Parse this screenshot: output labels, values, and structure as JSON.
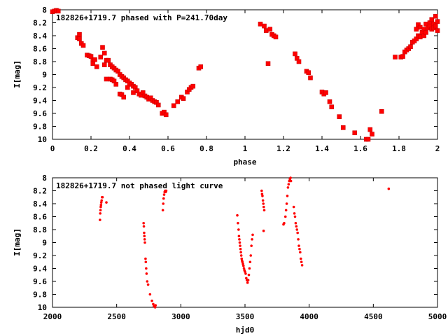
{
  "chart_data": [
    {
      "type": "scatter",
      "title": "182826+1719.7 phased with P=241.70day",
      "xlabel": "phase",
      "ylabel": "I[mag]",
      "xlim": [
        0,
        2
      ],
      "ylim": [
        10,
        8
      ],
      "y_inverted": true,
      "grid": false,
      "color": "#ff0000",
      "x_ticks": [
        "0",
        "0.2",
        "0.4",
        "0.6",
        "0.8",
        "1",
        "1.2",
        "1.4",
        "1.6",
        "1.8",
        "2"
      ],
      "y_ticks": [
        "8",
        "8.2",
        "8.4",
        "8.6",
        "8.8",
        "9",
        "9.2",
        "9.4",
        "9.6",
        "9.8",
        "10"
      ],
      "points": [
        [
          0.0,
          8.03
        ],
        [
          0.01,
          8.02
        ],
        [
          0.02,
          8.01
        ],
        [
          0.03,
          8.02
        ],
        [
          0.13,
          8.43
        ],
        [
          0.14,
          8.38
        ],
        [
          0.14,
          8.45
        ],
        [
          0.15,
          8.52
        ],
        [
          0.16,
          8.55
        ],
        [
          0.18,
          8.7
        ],
        [
          0.19,
          8.71
        ],
        [
          0.2,
          8.72
        ],
        [
          0.21,
          8.78
        ],
        [
          0.21,
          8.83
        ],
        [
          0.22,
          8.77
        ],
        [
          0.23,
          8.88
        ],
        [
          0.25,
          8.73
        ],
        [
          0.26,
          8.58
        ],
        [
          0.27,
          8.67
        ],
        [
          0.27,
          8.85
        ],
        [
          0.28,
          8.78
        ],
        [
          0.28,
          9.07
        ],
        [
          0.29,
          8.78
        ],
        [
          0.3,
          8.85
        ],
        [
          0.3,
          9.07
        ],
        [
          0.31,
          8.88
        ],
        [
          0.31,
          9.08
        ],
        [
          0.32,
          8.9
        ],
        [
          0.32,
          9.1
        ],
        [
          0.33,
          8.93
        ],
        [
          0.33,
          9.15
        ],
        [
          0.34,
          8.95
        ],
        [
          0.35,
          9.0
        ],
        [
          0.35,
          9.3
        ],
        [
          0.36,
          9.03
        ],
        [
          0.36,
          9.31
        ],
        [
          0.37,
          9.05
        ],
        [
          0.37,
          9.35
        ],
        [
          0.38,
          9.08
        ],
        [
          0.39,
          9.1
        ],
        [
          0.39,
          9.2
        ],
        [
          0.4,
          9.13
        ],
        [
          0.41,
          9.15
        ],
        [
          0.42,
          9.18
        ],
        [
          0.42,
          9.28
        ],
        [
          0.43,
          9.2
        ],
        [
          0.44,
          9.25
        ],
        [
          0.45,
          9.3
        ],
        [
          0.46,
          9.32
        ],
        [
          0.47,
          9.28
        ],
        [
          0.48,
          9.33
        ],
        [
          0.49,
          9.35
        ],
        [
          0.5,
          9.38
        ],
        [
          0.51,
          9.36
        ],
        [
          0.52,
          9.4
        ],
        [
          0.53,
          9.42
        ],
        [
          0.54,
          9.43
        ],
        [
          0.55,
          9.47
        ],
        [
          0.57,
          9.6
        ],
        [
          0.58,
          9.58
        ],
        [
          0.59,
          9.62
        ],
        [
          0.63,
          9.48
        ],
        [
          0.65,
          9.42
        ],
        [
          0.67,
          9.35
        ],
        [
          0.68,
          9.37
        ],
        [
          0.7,
          9.27
        ],
        [
          0.71,
          9.23
        ],
        [
          0.72,
          9.2
        ],
        [
          0.73,
          9.18
        ],
        [
          0.76,
          8.9
        ],
        [
          0.77,
          8.88
        ],
        [
          1.08,
          8.22
        ],
        [
          1.1,
          8.25
        ],
        [
          1.11,
          8.32
        ],
        [
          1.12,
          8.83
        ],
        [
          1.13,
          8.3
        ],
        [
          1.14,
          8.38
        ],
        [
          1.15,
          8.4
        ],
        [
          1.16,
          8.42
        ],
        [
          1.26,
          8.68
        ],
        [
          1.27,
          8.75
        ],
        [
          1.28,
          8.8
        ],
        [
          1.32,
          8.95
        ],
        [
          1.33,
          8.97
        ],
        [
          1.34,
          9.05
        ],
        [
          1.4,
          9.27
        ],
        [
          1.41,
          9.3
        ],
        [
          1.42,
          9.28
        ],
        [
          1.44,
          9.42
        ],
        [
          1.45,
          9.5
        ],
        [
          1.49,
          9.65
        ],
        [
          1.51,
          9.82
        ],
        [
          1.57,
          9.9
        ],
        [
          1.63,
          10.0
        ],
        [
          1.64,
          10.0
        ],
        [
          1.65,
          9.85
        ],
        [
          1.66,
          9.92
        ],
        [
          1.71,
          9.57
        ],
        [
          1.78,
          8.73
        ],
        [
          1.81,
          8.73
        ],
        [
          1.82,
          8.72
        ],
        [
          1.83,
          8.65
        ],
        [
          1.84,
          8.62
        ],
        [
          1.85,
          8.6
        ],
        [
          1.86,
          8.57
        ],
        [
          1.87,
          8.5
        ],
        [
          1.88,
          8.48
        ],
        [
          1.89,
          8.45
        ],
        [
          1.89,
          8.3
        ],
        [
          1.9,
          8.4
        ],
        [
          1.9,
          8.23
        ],
        [
          1.91,
          8.42
        ],
        [
          1.91,
          8.27
        ],
        [
          1.92,
          8.35
        ],
        [
          1.93,
          8.3
        ],
        [
          1.93,
          8.4
        ],
        [
          1.94,
          8.22
        ],
        [
          1.94,
          8.35
        ],
        [
          1.95,
          8.28
        ],
        [
          1.96,
          8.2
        ],
        [
          1.96,
          8.25
        ],
        [
          1.97,
          8.15
        ],
        [
          1.97,
          8.3
        ],
        [
          1.98,
          8.22
        ],
        [
          1.98,
          8.28
        ],
        [
          1.99,
          8.25
        ],
        [
          1.99,
          8.1
        ],
        [
          2.0,
          8.18
        ],
        [
          2.0,
          8.32
        ]
      ]
    },
    {
      "type": "scatter",
      "title": "182826+1719.7 not phased light curve",
      "xlabel": "hjd0",
      "ylabel": "I[mag]",
      "xlim": [
        2000,
        5000
      ],
      "ylim": [
        10,
        8
      ],
      "y_inverted": true,
      "grid": false,
      "color": "#ff0000",
      "x_ticks": [
        "2000",
        "2500",
        "3000",
        "3500",
        "4000",
        "4500",
        "5000"
      ],
      "y_ticks": [
        "8",
        "8.2",
        "8.4",
        "8.6",
        "8.8",
        "9",
        "9.2",
        "9.4",
        "9.6",
        "9.8",
        "10"
      ],
      "points": [
        [
          2370,
          8.65
        ],
        [
          2372,
          8.55
        ],
        [
          2374,
          8.5
        ],
        [
          2376,
          8.45
        ],
        [
          2378,
          8.42
        ],
        [
          2380,
          8.38
        ],
        [
          2383,
          8.35
        ],
        [
          2386,
          8.3
        ],
        [
          2390,
          8.3
        ],
        [
          2420,
          8.38
        ],
        [
          2710,
          8.7
        ],
        [
          2712,
          8.75
        ],
        [
          2714,
          8.85
        ],
        [
          2716,
          8.9
        ],
        [
          2718,
          8.95
        ],
        [
          2720,
          9.0
        ],
        [
          2725,
          9.25
        ],
        [
          2727,
          9.3
        ],
        [
          2730,
          9.4
        ],
        [
          2733,
          9.48
        ],
        [
          2738,
          9.6
        ],
        [
          2745,
          9.65
        ],
        [
          2760,
          9.8
        ],
        [
          2775,
          9.9
        ],
        [
          2785,
          9.95
        ],
        [
          2790,
          9.98
        ],
        [
          2800,
          10.0
        ],
        [
          2803,
          9.97
        ],
        [
          2860,
          8.5
        ],
        [
          2863,
          8.4
        ],
        [
          2866,
          8.32
        ],
        [
          2870,
          8.26
        ],
        [
          2874,
          8.22
        ],
        [
          2878,
          8.2
        ],
        [
          2882,
          8.22
        ],
        [
          2886,
          8.2
        ],
        [
          3440,
          8.58
        ],
        [
          3445,
          8.7
        ],
        [
          3450,
          8.8
        ],
        [
          3453,
          8.9
        ],
        [
          3456,
          8.95
        ],
        [
          3459,
          9.0
        ],
        [
          3462,
          9.05
        ],
        [
          3465,
          9.1
        ],
        [
          3468,
          9.15
        ],
        [
          3471,
          9.2
        ],
        [
          3474,
          9.25
        ],
        [
          3477,
          9.28
        ],
        [
          3480,
          9.3
        ],
        [
          3484,
          9.33
        ],
        [
          3488,
          9.36
        ],
        [
          3492,
          9.4
        ],
        [
          3496,
          9.43
        ],
        [
          3500,
          9.45
        ],
        [
          3505,
          9.48
        ],
        [
          3510,
          9.55
        ],
        [
          3515,
          9.58
        ],
        [
          3520,
          9.62
        ],
        [
          3525,
          9.58
        ],
        [
          3530,
          9.5
        ],
        [
          3535,
          9.4
        ],
        [
          3540,
          9.3
        ],
        [
          3545,
          9.2
        ],
        [
          3550,
          9.05
        ],
        [
          3555,
          8.95
        ],
        [
          3560,
          8.88
        ],
        [
          3630,
          8.2
        ],
        [
          3633,
          8.25
        ],
        [
          3636,
          8.28
        ],
        [
          3640,
          8.35
        ],
        [
          3643,
          8.4
        ],
        [
          3646,
          8.45
        ],
        [
          3650,
          8.5
        ],
        [
          3645,
          8.82
        ],
        [
          3800,
          8.72
        ],
        [
          3805,
          8.7
        ],
        [
          3815,
          8.6
        ],
        [
          3820,
          8.5
        ],
        [
          3825,
          8.4
        ],
        [
          3830,
          8.28
        ],
        [
          3835,
          8.15
        ],
        [
          3840,
          8.1
        ],
        [
          3845,
          8.05
        ],
        [
          3850,
          8.02
        ],
        [
          3855,
          8.0
        ],
        [
          3858,
          8.05
        ],
        [
          3880,
          8.45
        ],
        [
          3885,
          8.55
        ],
        [
          3890,
          8.6
        ],
        [
          3895,
          8.7
        ],
        [
          3900,
          8.75
        ],
        [
          3905,
          8.8
        ],
        [
          3910,
          8.85
        ],
        [
          3915,
          8.95
        ],
        [
          3920,
          9.05
        ],
        [
          3925,
          9.1
        ],
        [
          3930,
          9.15
        ],
        [
          3935,
          9.25
        ],
        [
          3940,
          9.3
        ],
        [
          3945,
          9.35
        ],
        [
          4620,
          8.17
        ]
      ]
    }
  ]
}
